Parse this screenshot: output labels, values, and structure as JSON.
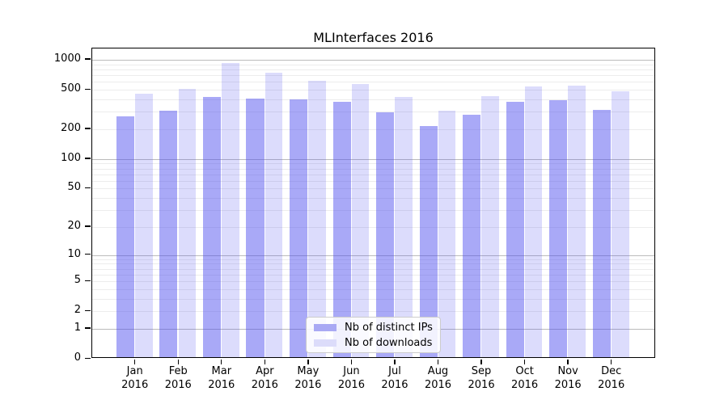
{
  "title": "MLInterfaces 2016",
  "legend": {
    "items": [
      {
        "label": "Nb of distinct IPs",
        "color": "#a9a9f4"
      },
      {
        "label": "Nb of downloads",
        "color": "#dcdcfa"
      }
    ]
  },
  "colors": {
    "bar_distinct_ips": "rgba(80,80,239,0.49)",
    "bar_downloads": "rgba(80,80,239,0.20)",
    "major_gridline": "#bbbbbb",
    "minor_gridline": "#ececec",
    "axis": "#000000"
  },
  "chart_data": {
    "type": "bar",
    "title": "MLInterfaces 2016",
    "categories": [
      "Jan 2016",
      "Feb 2016",
      "Mar 2016",
      "Apr 2016",
      "May 2016",
      "Jun 2016",
      "Jul 2016",
      "Aug 2016",
      "Sep 2016",
      "Oct 2016",
      "Nov 2016",
      "Dec 2016"
    ],
    "series": [
      {
        "name": "Nb of distinct IPs",
        "values": [
          270,
          307,
          424,
          409,
          397,
          379,
          295,
          217,
          281,
          379,
          389,
          314
        ]
      },
      {
        "name": "Nb of downloads",
        "values": [
          457,
          506,
          932,
          744,
          618,
          569,
          422,
          308,
          432,
          541,
          548,
          484
        ]
      }
    ],
    "xlabel": "",
    "ylabel": "",
    "y_ticks": [
      0,
      1,
      2,
      5,
      10,
      20,
      50,
      100,
      200,
      500,
      1000
    ],
    "y_scale": "log10(value+1)",
    "ylim": [
      0,
      1300
    ],
    "grid": true,
    "legend_position": "lower center"
  }
}
